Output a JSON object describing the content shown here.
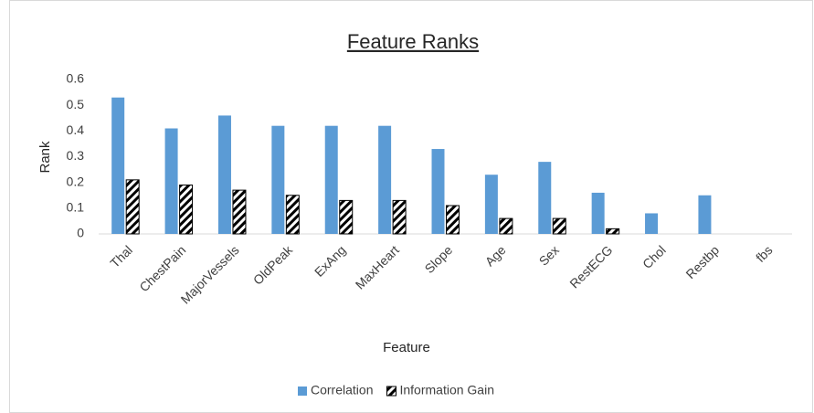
{
  "chart_data": {
    "type": "bar",
    "title": "Feature Ranks",
    "x_label": "Feature",
    "y_label": "Rank",
    "categories": [
      "Thal",
      "ChestPain",
      "MajorVessels",
      "OldPeak",
      "ExAng",
      "MaxHeart",
      "Slope",
      "Age",
      "Sex",
      "RestECG",
      "Chol",
      "Restbp",
      "fbs"
    ],
    "series": [
      {
        "name": "Correlation",
        "color": "#5b9bd5",
        "values": [
          0.53,
          0.41,
          0.46,
          0.42,
          0.42,
          0.42,
          0.33,
          0.23,
          0.28,
          0.16,
          0.08,
          0.15,
          0
        ]
      },
      {
        "name": "Information Gain",
        "color": "#000000",
        "pattern": "diagonal-hatch",
        "values": [
          0.21,
          0.19,
          0.17,
          0.15,
          0.13,
          0.13,
          0.11,
          0.06,
          0.06,
          0.02,
          0,
          0,
          0
        ]
      }
    ],
    "ylim": [
      0,
      0.6
    ],
    "yticks": [
      0,
      0.1,
      0.2,
      0.3,
      0.4,
      0.5,
      0.6
    ],
    "grid": false,
    "legend": "bottom"
  }
}
